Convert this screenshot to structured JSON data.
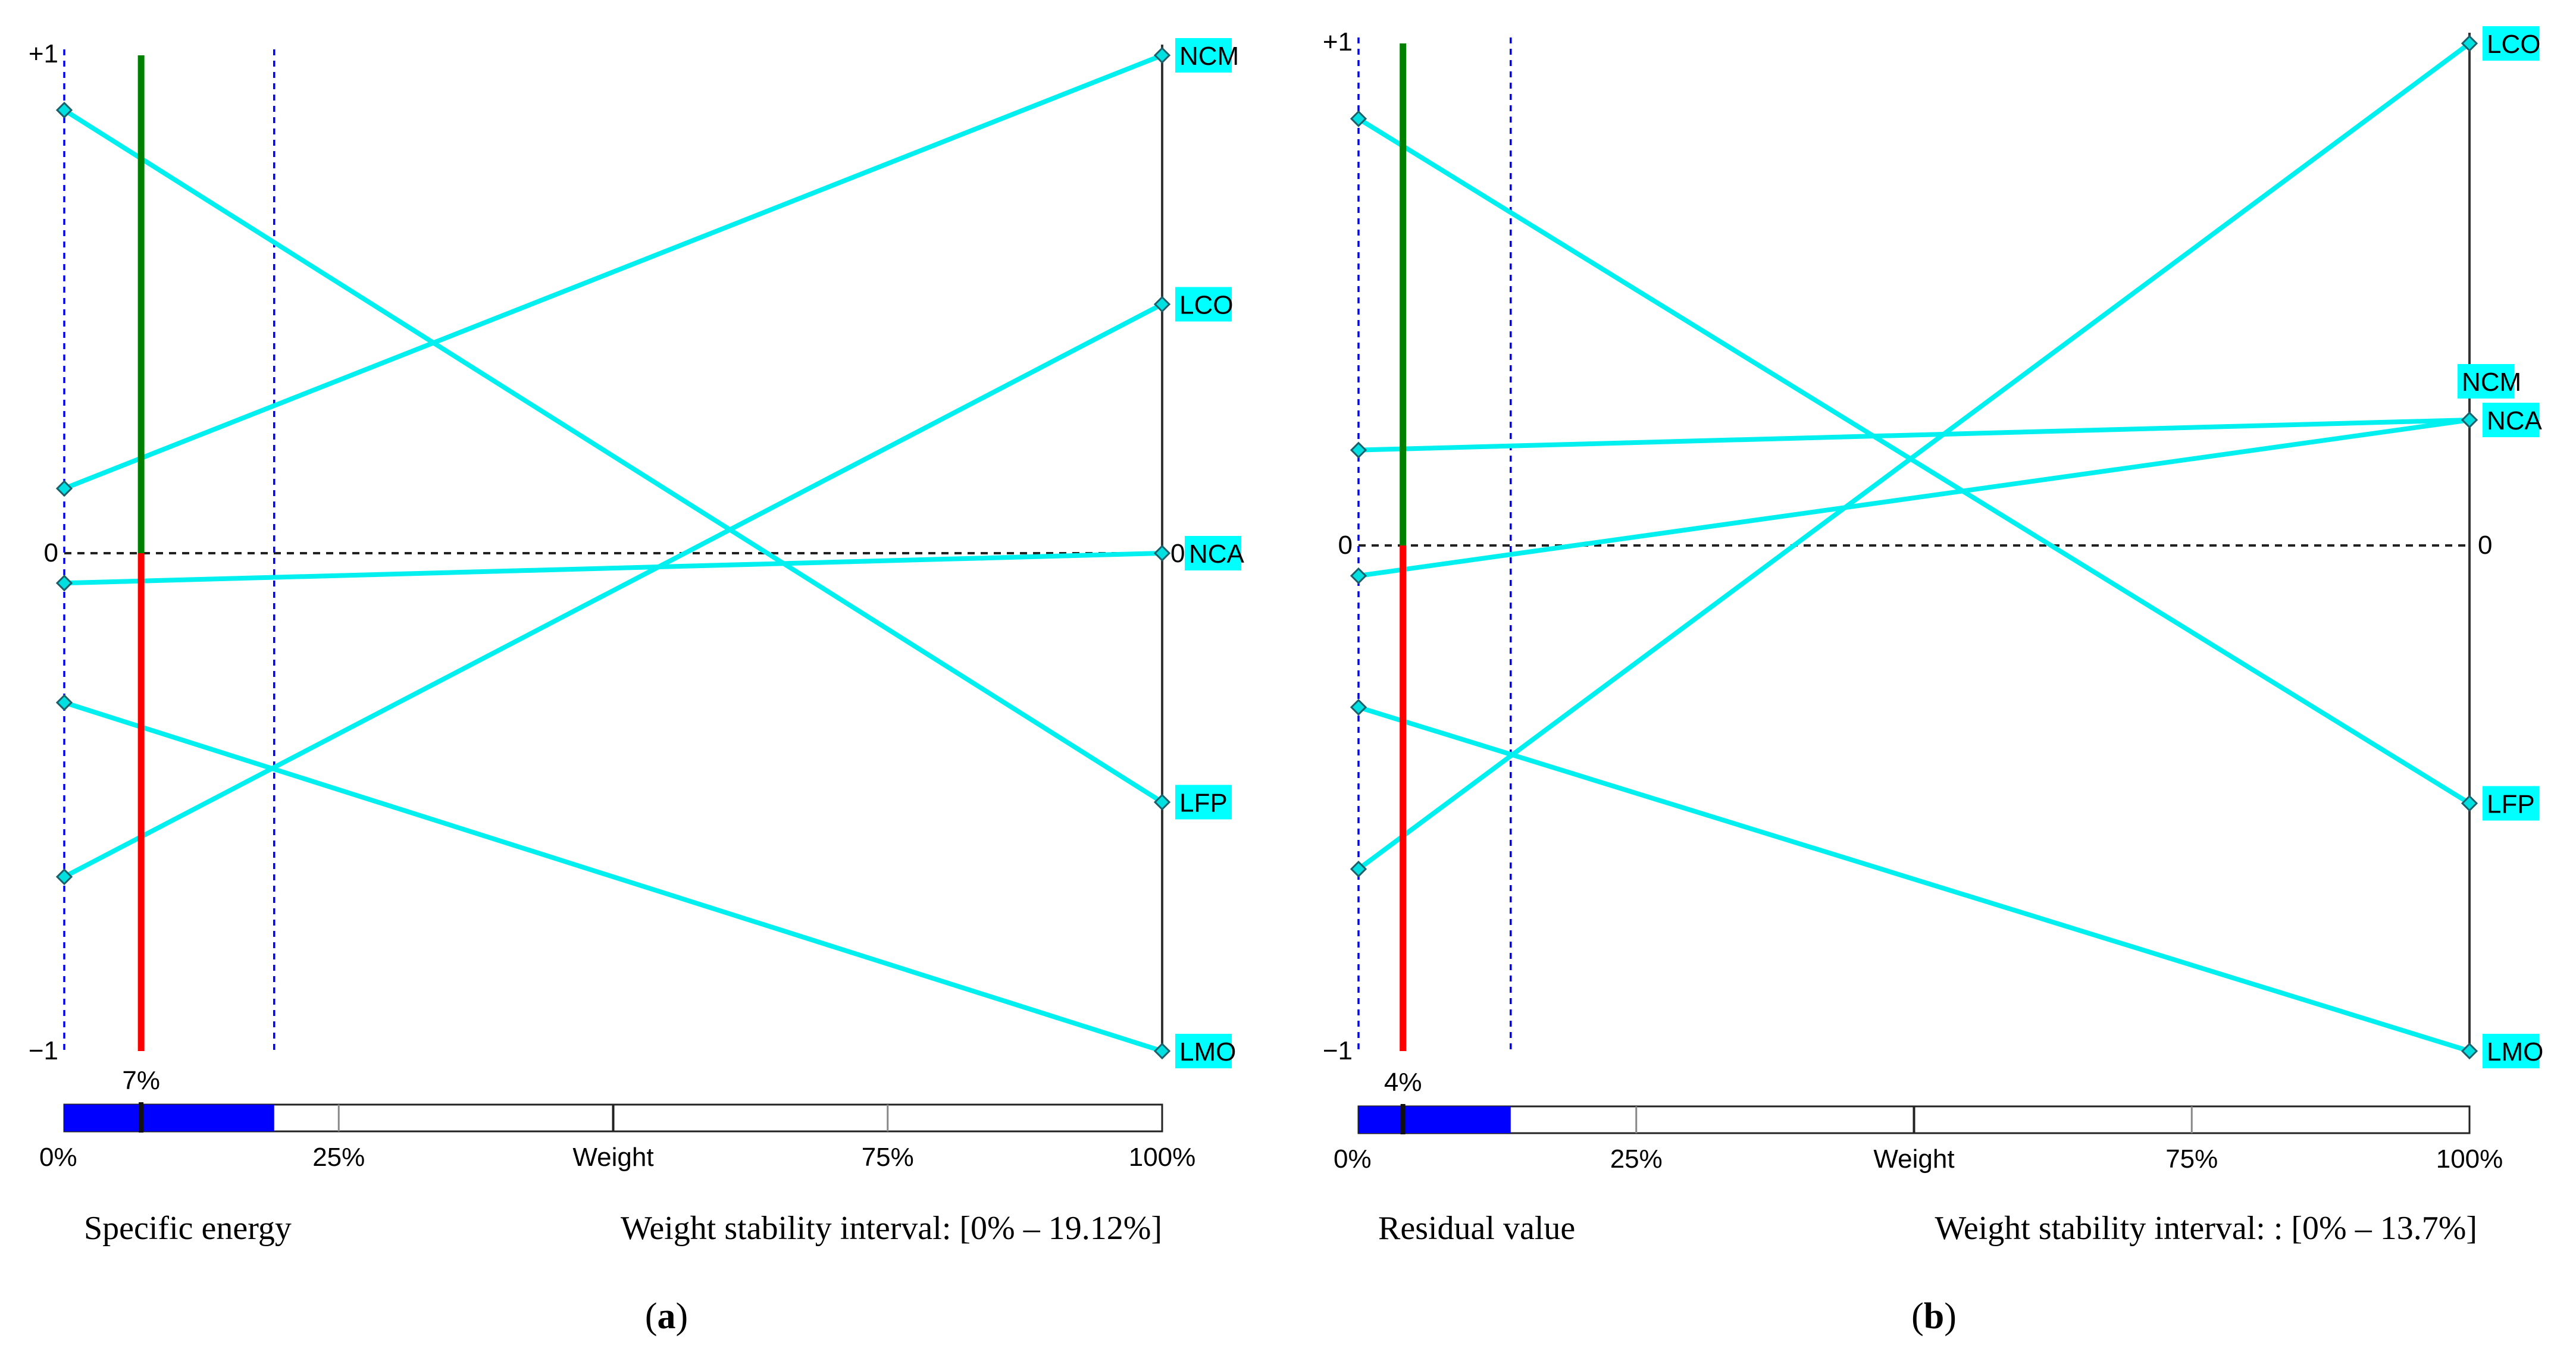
{
  "figure": {
    "panels": [
      {
        "caption": "(a)",
        "caption_letter": "a"
      },
      {
        "caption": "(b)",
        "caption_letter": "b"
      }
    ],
    "colors": {
      "line": "#00f0f0",
      "label_bg": "#00ffff",
      "positive": "#008000",
      "negative": "#ff0000",
      "interval": "#0000ff",
      "marker_fill": "#00e0e0",
      "axis": "#333333"
    }
  },
  "chart_data": [
    {
      "type": "line",
      "title": "Specific energy",
      "xlabel": "Weight",
      "ylabel": "",
      "ylim": [
        -1,
        1
      ],
      "y_tick_labels": {
        "top": "+1",
        "mid": "0",
        "bottom": "−1"
      },
      "x_ticks": [
        {
          "value": 0,
          "label": "0%"
        },
        {
          "value": 25,
          "label": "25%"
        },
        {
          "value": 50,
          "label": "Weight"
        },
        {
          "value": 75,
          "label": "75%"
        },
        {
          "value": 100,
          "label": "100%"
        }
      ],
      "current_weight": 7,
      "current_weight_label": "7%",
      "stability_interval": [
        0,
        19.12
      ],
      "stability_text": "Weight stability interval: [0% – 19.12%]",
      "series": [
        {
          "name": "NCM",
          "label": "NCM",
          "start": 0.13,
          "end": 1.0
        },
        {
          "name": "LCO",
          "label": "LCO",
          "start": -0.65,
          "end": 0.5
        },
        {
          "name": "NCA",
          "label": "NCA",
          "label_prefix": "0",
          "start": -0.06,
          "end": 0.0
        },
        {
          "name": "LFP",
          "label": "LFP",
          "start": 0.89,
          "end": -0.5
        },
        {
          "name": "LMO",
          "label": "LMO",
          "start": -0.3,
          "end": -1.0
        }
      ]
    },
    {
      "type": "line",
      "title": "Residual value",
      "xlabel": "Weight",
      "ylabel": "",
      "ylim": [
        -1,
        1
      ],
      "y_tick_labels": {
        "top": "+1",
        "mid": "0",
        "bottom": "−1",
        "right_mid": "0"
      },
      "x_ticks": [
        {
          "value": 0,
          "label": "0%"
        },
        {
          "value": 25,
          "label": "25%"
        },
        {
          "value": 50,
          "label": "Weight"
        },
        {
          "value": 75,
          "label": "75%"
        },
        {
          "value": 100,
          "label": "100%"
        }
      ],
      "current_weight": 4,
      "current_weight_label": "4%",
      "stability_interval": [
        0,
        13.7
      ],
      "stability_text": "Weight stability interval: : [0% – 13.7%]",
      "series": [
        {
          "name": "LCO",
          "label": "LCO",
          "start": -0.64,
          "end": 1.0
        },
        {
          "name": "NCM",
          "label": "NCM",
          "start": 0.19,
          "end": 0.25,
          "label_above": true
        },
        {
          "name": "NCA",
          "label": "NCA",
          "start": -0.06,
          "end": 0.25
        },
        {
          "name": "LFP",
          "label": "LFP",
          "start": 0.85,
          "end": -0.51
        },
        {
          "name": "LMO",
          "label": "LMO",
          "start": -0.32,
          "end": -1.0
        }
      ]
    }
  ]
}
